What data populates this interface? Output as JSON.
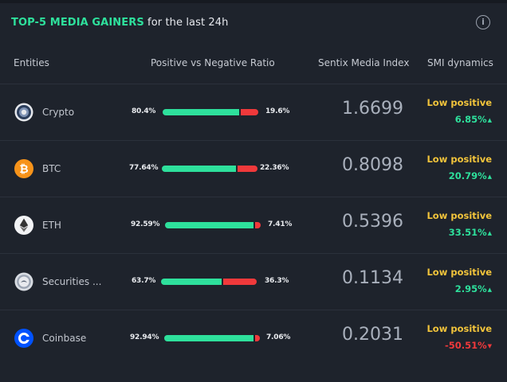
{
  "header": {
    "title_highlight": "TOP-5 MEDIA GAINERS",
    "title_rest": " for the last 24h",
    "info_symbol": "i"
  },
  "columns": {
    "entities": "Entities",
    "ratio": "Positive vs Negative Ratio",
    "index": "Sentix Media Index",
    "dynamics": "SMI dynamics"
  },
  "rows": [
    {
      "name": "Crypto",
      "icon": "crypto-seal-icon",
      "positive": 80.4,
      "negative": 19.6,
      "positive_label": "80.4%",
      "negative_label": "19.6%",
      "index": "1.6699",
      "smi_label": "Low positive",
      "change": "6.85%",
      "direction": "up"
    },
    {
      "name": "BTC",
      "icon": "bitcoin-icon",
      "positive": 77.64,
      "negative": 22.36,
      "positive_label": "77.64%",
      "negative_label": "22.36%",
      "index": "0.8098",
      "smi_label": "Low positive",
      "change": "20.79%",
      "direction": "up"
    },
    {
      "name": "ETH",
      "icon": "ethereum-icon",
      "positive": 92.59,
      "negative": 7.41,
      "positive_label": "92.59%",
      "negative_label": "7.41%",
      "index": "0.5396",
      "smi_label": "Low positive",
      "change": "33.51%",
      "direction": "up"
    },
    {
      "name": "Securities ...",
      "icon": "sec-seal-icon",
      "positive": 63.7,
      "negative": 36.3,
      "positive_label": "63.7%",
      "negative_label": "36.3%",
      "index": "0.1134",
      "smi_label": "Low positive",
      "change": "2.95%",
      "direction": "up"
    },
    {
      "name": "Coinbase",
      "icon": "coinbase-icon",
      "positive": 92.94,
      "negative": 7.06,
      "positive_label": "92.94%",
      "negative_label": "7.06%",
      "index": "0.2031",
      "smi_label": "Low positive",
      "change": "-50.51%",
      "direction": "down"
    }
  ],
  "colors": {
    "positive": "#2ee09c",
    "negative": "#f0393b",
    "label": "#f2c43b",
    "background": "#1e232c"
  }
}
